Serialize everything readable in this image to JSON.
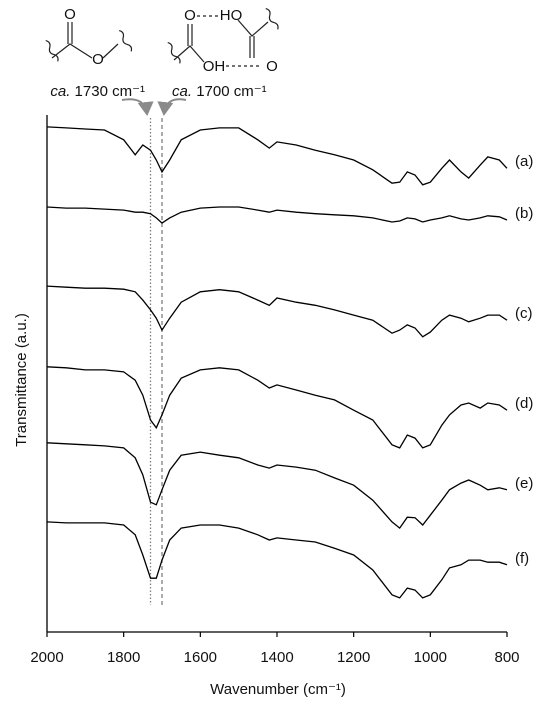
{
  "chart_data": {
    "type": "line",
    "x_label": "Wavenumber (cm⁻¹)",
    "y_label": "Transmittance (a.u.)",
    "xlim": [
      2000,
      800
    ],
    "xticks": [
      2000,
      1800,
      1600,
      1400,
      1200,
      1000,
      800
    ],
    "ylim": [
      0,
      100
    ],
    "x": [
      2000,
      1950,
      1900,
      1850,
      1800,
      1770,
      1750,
      1730,
      1715,
      1700,
      1680,
      1650,
      1600,
      1550,
      1500,
      1450,
      1420,
      1400,
      1350,
      1300,
      1250,
      1200,
      1150,
      1100,
      1080,
      1060,
      1040,
      1020,
      1000,
      970,
      950,
      920,
      900,
      870,
      850,
      820,
      800
    ],
    "series": [
      {
        "name": "(a)",
        "color": "#000000",
        "values": [
          97.7,
          97.5,
          97.3,
          97.1,
          95.2,
          92.3,
          94.2,
          93.2,
          91.3,
          89.0,
          91.3,
          95.2,
          97.1,
          97.5,
          97.5,
          95.2,
          93.6,
          94.8,
          94.2,
          93.2,
          92.3,
          91.3,
          89.4,
          86.8,
          87.0,
          89.0,
          88.4,
          86.5,
          87.0,
          89.7,
          91.3,
          89.0,
          87.8,
          90.3,
          91.9,
          91.3,
          89.7
        ]
      },
      {
        "name": "(b)",
        "color": "#000000",
        "values": [
          82.2,
          82.0,
          82.0,
          81.8,
          81.6,
          81.2,
          81.2,
          80.9,
          80.1,
          79.1,
          80.1,
          81.2,
          82.0,
          82.2,
          82.2,
          81.6,
          81.2,
          81.6,
          81.2,
          80.9,
          80.7,
          80.5,
          80.1,
          79.3,
          79.5,
          80.1,
          79.9,
          79.3,
          79.7,
          80.1,
          80.5,
          79.9,
          79.7,
          80.1,
          80.5,
          80.3,
          79.7
        ]
      },
      {
        "name": "(c)",
        "color": "#000000",
        "values": [
          66.9,
          66.7,
          66.5,
          66.5,
          66.3,
          65.8,
          64.2,
          62.3,
          60.7,
          58.4,
          60.7,
          63.8,
          65.8,
          66.2,
          65.8,
          64.2,
          63.2,
          64.6,
          63.8,
          63.2,
          62.3,
          61.3,
          60.3,
          57.8,
          58.4,
          59.4,
          58.8,
          57.1,
          58.0,
          60.3,
          61.3,
          60.7,
          60.0,
          60.7,
          61.3,
          61.3,
          60.3
        ]
      },
      {
        "name": "(d)",
        "color": "#000000",
        "values": [
          51.3,
          51.1,
          50.7,
          50.7,
          50.3,
          48.7,
          45.8,
          41.0,
          39.5,
          42.0,
          45.8,
          49.1,
          50.7,
          51.1,
          50.7,
          48.7,
          47.2,
          47.8,
          46.8,
          45.8,
          44.9,
          42.9,
          41.0,
          36.2,
          35.6,
          38.1,
          37.5,
          35.6,
          36.2,
          40.0,
          42.0,
          43.9,
          44.3,
          43.3,
          44.3,
          43.9,
          42.9
        ]
      },
      {
        "name": "(e)",
        "color": "#000000",
        "values": [
          36.6,
          36.4,
          36.2,
          36.0,
          35.6,
          33.7,
          30.4,
          25.1,
          24.6,
          27.5,
          31.3,
          34.2,
          34.8,
          34.2,
          33.7,
          32.3,
          31.7,
          32.3,
          31.9,
          31.3,
          29.8,
          28.4,
          25.5,
          21.3,
          20.1,
          22.2,
          22.1,
          20.7,
          22.6,
          25.5,
          27.5,
          28.8,
          29.4,
          28.4,
          27.5,
          27.9,
          27.5
        ]
      },
      {
        "name": "(f)",
        "color": "#000000",
        "values": [
          21.3,
          21.1,
          21.1,
          21.1,
          20.7,
          18.8,
          14.9,
          10.4,
          10.4,
          13.9,
          17.8,
          20.1,
          20.7,
          20.7,
          20.1,
          18.8,
          17.8,
          18.2,
          17.8,
          17.4,
          16.2,
          14.9,
          12.0,
          7.2,
          6.6,
          8.5,
          8.1,
          6.6,
          7.2,
          10.1,
          12.4,
          13.0,
          13.9,
          13.9,
          13.5,
          13.5,
          13.0
        ]
      }
    ],
    "reference_lines": [
      {
        "x": 1730,
        "qualifier": "ca.",
        "label": "1730 cm⁻¹",
        "style": "dotted",
        "color": "#808080"
      },
      {
        "x": 1700,
        "qualifier": "ca.",
        "label": "1700 cm⁻¹",
        "style": "dashed",
        "color": "#808080"
      }
    ],
    "structures": {
      "ester": {
        "carbonyl_o": "O",
        "ether_o": "O"
      },
      "acid_dimer": {
        "top_left_o": "O",
        "top_right_ho": "HO",
        "bottom_left_oh": "OH",
        "bottom_right_o": "O"
      }
    }
  }
}
